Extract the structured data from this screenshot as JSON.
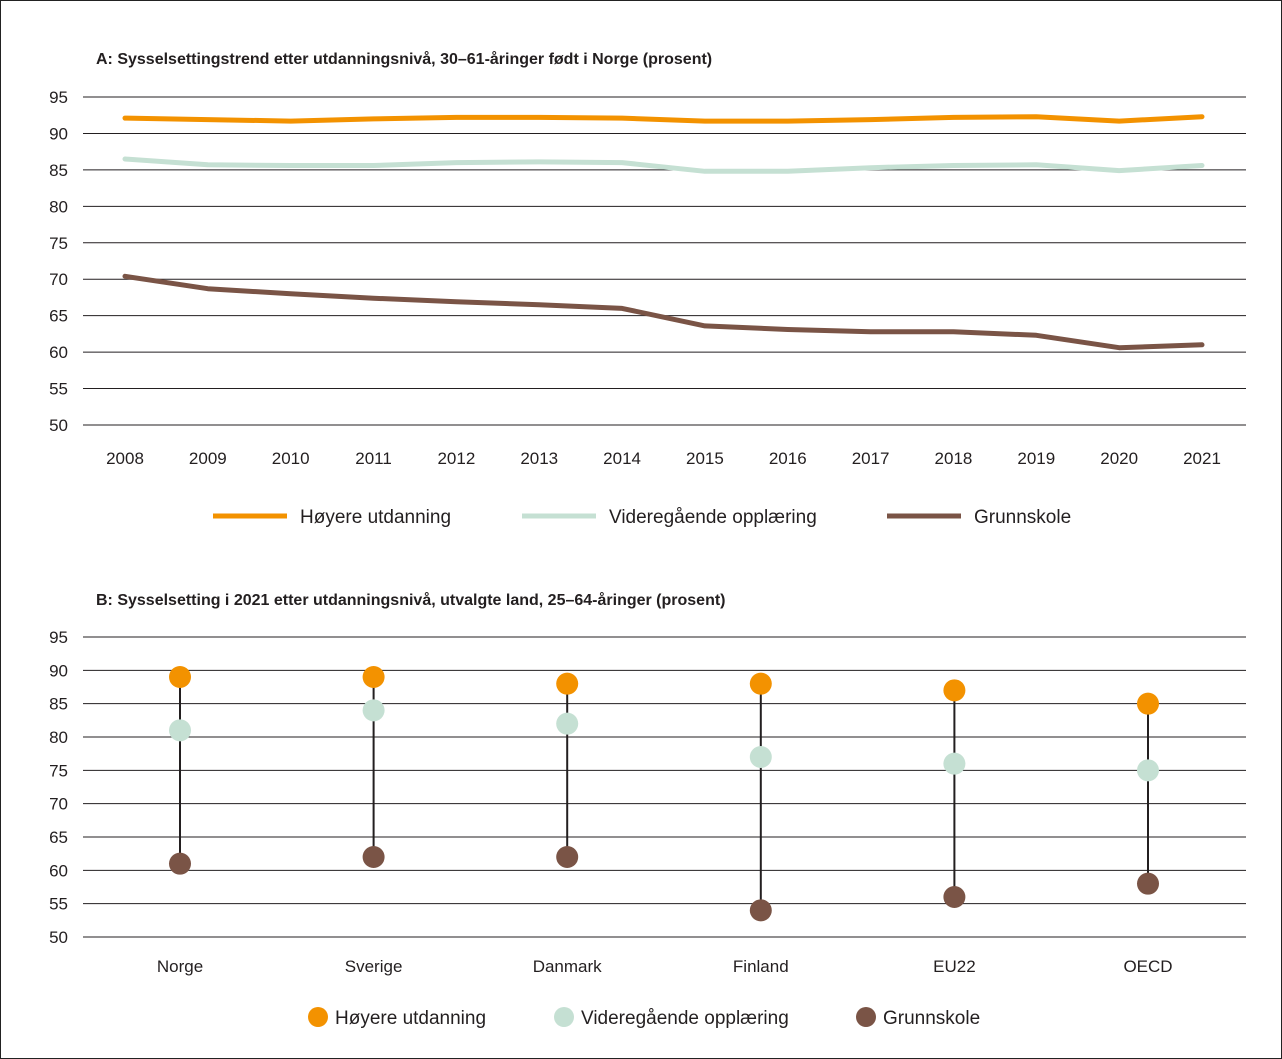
{
  "chart_data": [
    {
      "type": "line",
      "title": "A: Sysselsettingstrend etter utdanningsnivå, 30–61-åringer født i Norge (prosent)",
      "x": [
        "2008",
        "2009",
        "2010",
        "2011",
        "2012",
        "2013",
        "2014",
        "2015",
        "2016",
        "2017",
        "2018",
        "2019",
        "2020",
        "2021"
      ],
      "ylim": [
        50,
        95
      ],
      "yticks": [
        50,
        55,
        60,
        65,
        70,
        75,
        80,
        85,
        90,
        95
      ],
      "grid": true,
      "legend_position": "bottom",
      "series": [
        {
          "name": "Høyere utdanning",
          "color": "#f39200",
          "values": [
            92.1,
            91.9,
            91.7,
            92.0,
            92.2,
            92.2,
            92.1,
            91.7,
            91.7,
            91.9,
            92.2,
            92.3,
            91.7,
            92.3
          ]
        },
        {
          "name": "Videregående opplæring",
          "color": "#c5e0d3",
          "values": [
            86.5,
            85.7,
            85.6,
            85.6,
            86.0,
            86.1,
            86.0,
            84.8,
            84.8,
            85.3,
            85.6,
            85.7,
            84.9,
            85.6
          ]
        },
        {
          "name": "Grunnskole",
          "color": "#7a5446",
          "values": [
            70.4,
            68.7,
            68.0,
            67.4,
            66.9,
            66.5,
            66.0,
            63.6,
            63.1,
            62.8,
            62.8,
            62.3,
            60.6,
            61.0
          ]
        }
      ]
    },
    {
      "type": "scatter",
      "title": "B: Sysselsetting i 2021 etter utdanningsnivå, utvalgte land, 25–64-åringer (prosent)",
      "categories": [
        "Norge",
        "Sverige",
        "Danmark",
        "Finland",
        "EU22",
        "OECD"
      ],
      "ylim": [
        50,
        95
      ],
      "yticks": [
        50,
        55,
        60,
        65,
        70,
        75,
        80,
        85,
        90,
        95
      ],
      "grid": true,
      "legend_position": "bottom",
      "series": [
        {
          "name": "Høyere utdanning",
          "color": "#f39200",
          "values": [
            89,
            89,
            88,
            88,
            87,
            85
          ]
        },
        {
          "name": "Videregående opplæring",
          "color": "#c5e0d3",
          "values": [
            81,
            84,
            82,
            77,
            76,
            75
          ]
        },
        {
          "name": "Grunnskole",
          "color": "#7a5446",
          "values": [
            61,
            62,
            62,
            54,
            56,
            58
          ]
        }
      ]
    }
  ]
}
